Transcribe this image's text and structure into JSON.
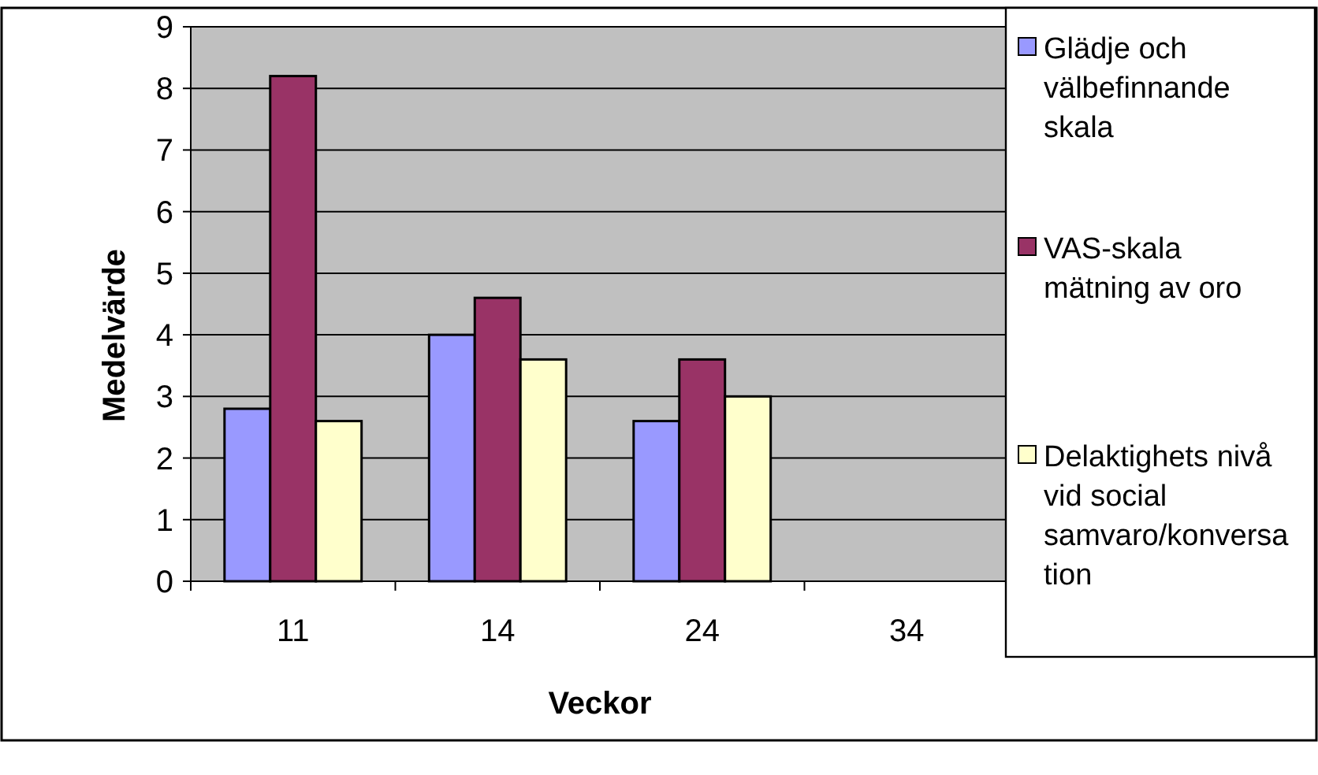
{
  "chart_data": {
    "type": "bar",
    "xlabel": "Veckor",
    "ylabel": "Medelvärde",
    "categories": [
      "11",
      "14",
      "24",
      "34"
    ],
    "series": [
      {
        "name": "Glädje och välbefinnande skala",
        "color": "#9999ff",
        "values": [
          2.8,
          4.0,
          2.6,
          null
        ]
      },
      {
        "name": "VAS-skala mätning av oro",
        "color": "#993366",
        "values": [
          8.2,
          4.6,
          3.6,
          null
        ]
      },
      {
        "name": "Delaktighets nivå vid social samvaro/konversation",
        "color": "#ffffcc",
        "values": [
          2.6,
          3.6,
          3.0,
          null
        ]
      }
    ],
    "ylim": [
      0,
      9
    ],
    "yticks": [
      0,
      1,
      2,
      3,
      4,
      5,
      6,
      7,
      8,
      9
    ],
    "grid": "y",
    "legend": "right"
  }
}
